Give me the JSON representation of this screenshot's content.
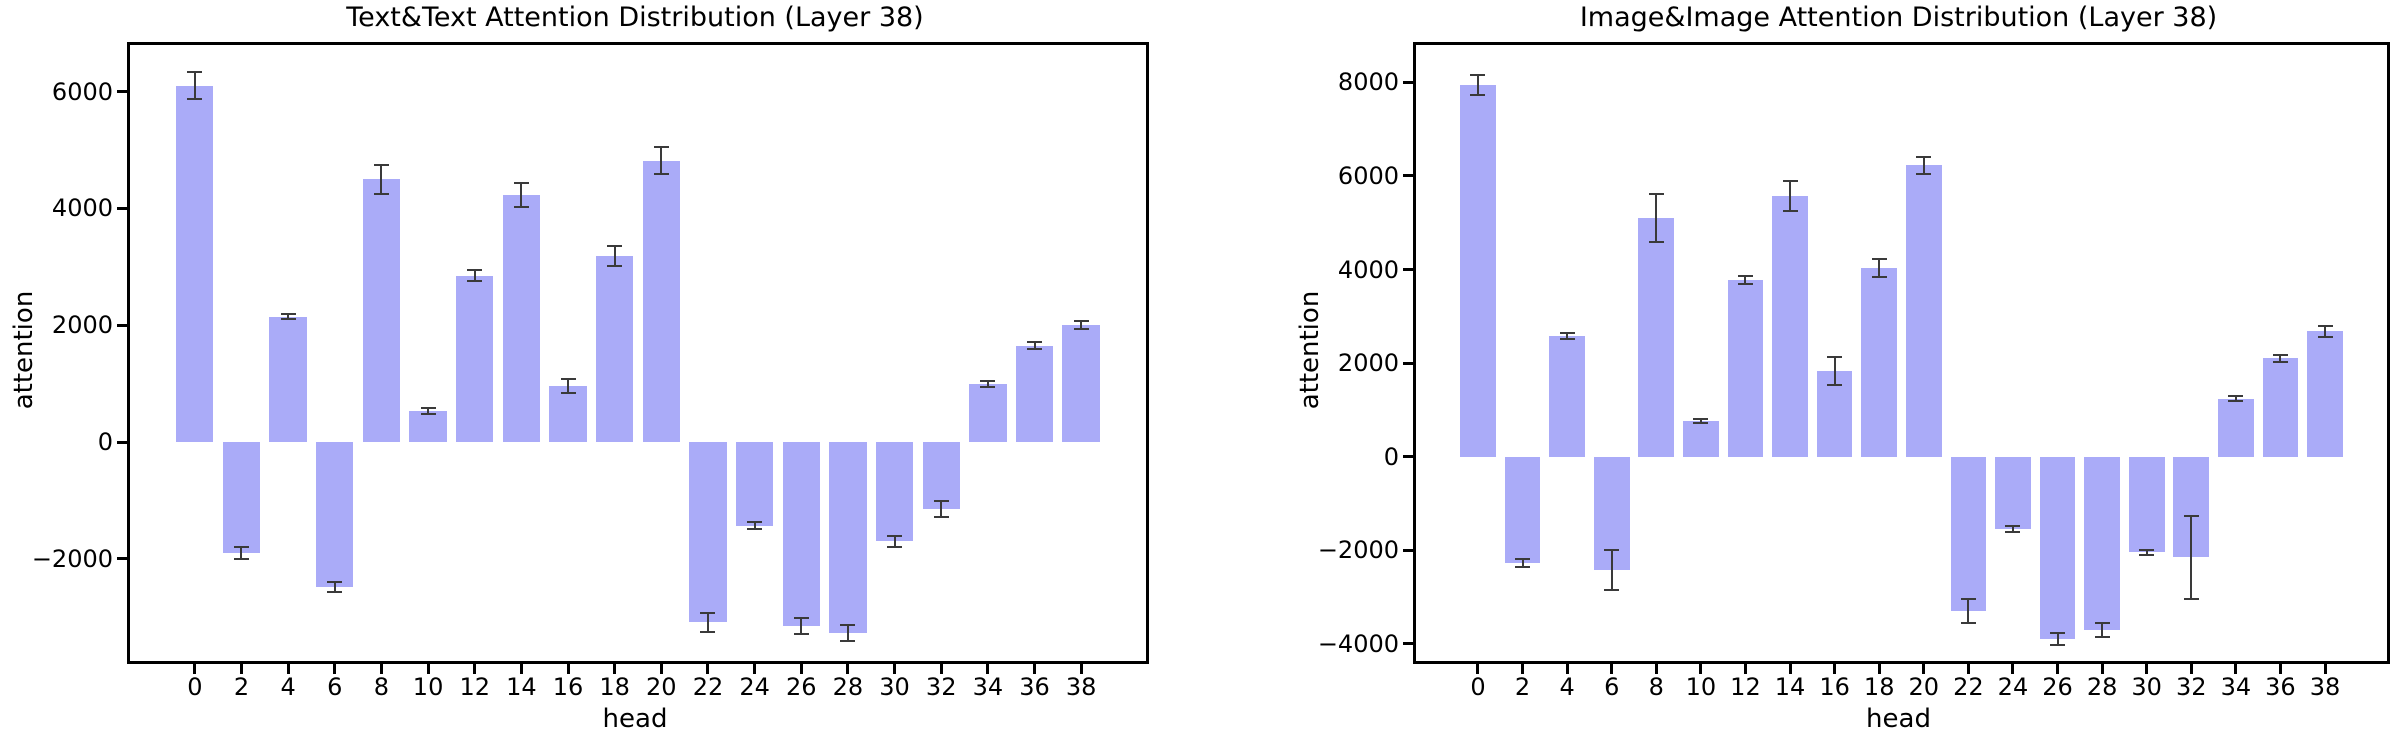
{
  "figure": {
    "background": "#ffffff"
  },
  "chart_data": [
    {
      "id": "text-text",
      "type": "bar",
      "title": "Text&Text Attention Distribution (Layer 38)",
      "xlabel": "head",
      "ylabel": "attention",
      "categories": [
        "0",
        "2",
        "4",
        "6",
        "8",
        "10",
        "12",
        "14",
        "16",
        "18",
        "20",
        "22",
        "24",
        "26",
        "28",
        "30",
        "32",
        "34",
        "36",
        "38"
      ],
      "values": [
        6100,
        -1900,
        2150,
        -2480,
        4500,
        530,
        2850,
        4230,
        960,
        3190,
        4820,
        -3090,
        -1430,
        -3150,
        -3270,
        -1700,
        -1150,
        1000,
        1650,
        2010
      ],
      "errors": [
        230,
        100,
        50,
        90,
        250,
        50,
        90,
        200,
        120,
        170,
        230,
        170,
        60,
        140,
        130,
        90,
        140,
        50,
        60,
        70
      ],
      "yticks": [
        6000,
        4000,
        2000,
        0,
        -2000
      ],
      "ylim": [
        -3750,
        6800
      ],
      "grid": false,
      "legend": "none",
      "bar_color": "#aaabf8",
      "error_color": "#3a3a3a"
    },
    {
      "id": "image-image",
      "type": "bar",
      "title": "Image&Image Attention Distribution (Layer 38)",
      "xlabel": "head",
      "ylabel": "attention",
      "categories": [
        "0",
        "2",
        "4",
        "6",
        "8",
        "10",
        "12",
        "14",
        "16",
        "18",
        "20",
        "22",
        "24",
        "26",
        "28",
        "30",
        "32",
        "34",
        "36",
        "38"
      ],
      "values": [
        7950,
        -2270,
        2580,
        -2420,
        5100,
        760,
        3780,
        5570,
        1830,
        4030,
        6230,
        -3300,
        -1550,
        -3900,
        -3700,
        -2050,
        -2150,
        1240,
        2100,
        2680
      ],
      "errors": [
        215,
        90,
        70,
        430,
        510,
        50,
        80,
        320,
        300,
        200,
        180,
        250,
        70,
        120,
        150,
        60,
        890,
        60,
        70,
        120
      ],
      "yticks": [
        8000,
        6000,
        4000,
        2000,
        0,
        -2000,
        -4000
      ],
      "ylim": [
        -4370,
        8800
      ],
      "grid": false,
      "legend": "none",
      "bar_color": "#aaabf8",
      "error_color": "#3a3a3a"
    }
  ]
}
